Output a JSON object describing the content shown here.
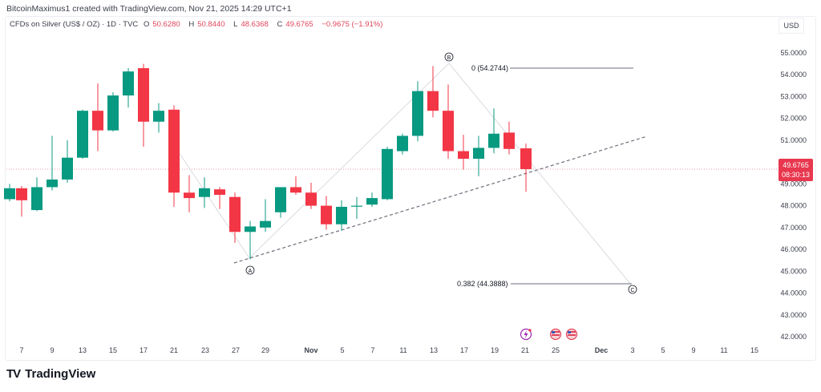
{
  "header": {
    "credit": "BitcoinMaximus1 created with TradingView.com, Nov 21, 2025 14:29 UTC+1"
  },
  "legend": {
    "symbol": "CFDs on Silver (US$ / OZ) · 1D · TVC",
    "open_label": "O",
    "open": "50.6280",
    "high_label": "H",
    "high": "50.8440",
    "low_label": "L",
    "low": "48.6368",
    "close_label": "C",
    "close": "49.6765",
    "change": "−0.9675 (−1.91%)"
  },
  "currency": "USD",
  "price_tag": {
    "price": "49.6765",
    "countdown": "08:30:13",
    "color": "#e8374e"
  },
  "brand": {
    "logo": "TV",
    "name": "TradingView"
  },
  "colors": {
    "up": "#089981",
    "down": "#f23645",
    "text": "#131722"
  },
  "annotations": {
    "wave_A": "A",
    "wave_B": "B",
    "wave_C": "C",
    "fib_0": "0 (54.2744)",
    "fib_382": "0.382 (44.3888)"
  },
  "chart_data": {
    "type": "candlestick",
    "title": "CFDs on Silver (US$ / OZ) · 1D · TVC",
    "xlabel": "",
    "ylabel": "USD",
    "ylim": [
      41.6,
      55.5
    ],
    "y_ticks": [
      "55.0000",
      "54.0000",
      "53.0000",
      "52.0000",
      "51.0000",
      "50.0000",
      "49.0000",
      "48.0000",
      "47.0000",
      "46.0000",
      "45.0000",
      "44.0000",
      "43.0000",
      "42.0000"
    ],
    "x_ticks": [
      "7",
      "9",
      "13",
      "15",
      "17",
      "21",
      "23",
      "27",
      "29",
      "Nov",
      "5",
      "7",
      "11",
      "13",
      "17",
      "19",
      "21",
      "25",
      "Dec",
      "3",
      "5",
      "9",
      "11",
      "15"
    ],
    "last_price": 49.6765,
    "candles": [
      {
        "o": 48.3,
        "h": 49.0,
        "l": 48.2,
        "c": 48.8
      },
      {
        "o": 48.8,
        "h": 48.9,
        "l": 47.5,
        "c": 48.25
      },
      {
        "o": 47.8,
        "h": 49.3,
        "l": 47.75,
        "c": 48.85
      },
      {
        "o": 48.85,
        "h": 51.2,
        "l": 48.7,
        "c": 49.2
      },
      {
        "o": 49.2,
        "h": 51.0,
        "l": 49.05,
        "c": 50.2
      },
      {
        "o": 50.2,
        "h": 52.4,
        "l": 50.15,
        "c": 52.35
      },
      {
        "o": 52.35,
        "h": 53.6,
        "l": 50.5,
        "c": 51.45
      },
      {
        "o": 51.45,
        "h": 53.2,
        "l": 51.4,
        "c": 53.05
      },
      {
        "o": 53.05,
        "h": 54.3,
        "l": 52.5,
        "c": 54.15
      },
      {
        "o": 54.3,
        "h": 54.5,
        "l": 50.7,
        "c": 51.85
      },
      {
        "o": 51.85,
        "h": 52.7,
        "l": 51.35,
        "c": 52.35
      },
      {
        "o": 52.4,
        "h": 52.6,
        "l": 47.95,
        "c": 48.6
      },
      {
        "o": 48.6,
        "h": 49.4,
        "l": 47.7,
        "c": 48.35
      },
      {
        "o": 48.4,
        "h": 49.3,
        "l": 47.9,
        "c": 48.8
      },
      {
        "o": 48.75,
        "h": 48.85,
        "l": 47.85,
        "c": 48.5
      },
      {
        "o": 48.4,
        "h": 48.6,
        "l": 46.3,
        "c": 46.8
      },
      {
        "o": 46.8,
        "h": 47.3,
        "l": 45.55,
        "c": 47.05
      },
      {
        "o": 47.0,
        "h": 48.3,
        "l": 46.8,
        "c": 47.3
      },
      {
        "o": 47.7,
        "h": 48.85,
        "l": 47.45,
        "c": 48.85
      },
      {
        "o": 48.85,
        "h": 49.35,
        "l": 48.5,
        "c": 48.6
      },
      {
        "o": 48.6,
        "h": 49.05,
        "l": 47.85,
        "c": 48.0
      },
      {
        "o": 48.0,
        "h": 48.45,
        "l": 46.9,
        "c": 47.15
      },
      {
        "o": 47.15,
        "h": 48.25,
        "l": 46.85,
        "c": 47.95
      },
      {
        "o": 48.0,
        "h": 48.4,
        "l": 47.4,
        "c": 48.0
      },
      {
        "o": 48.05,
        "h": 48.6,
        "l": 47.95,
        "c": 48.35
      },
      {
        "o": 48.3,
        "h": 50.7,
        "l": 48.25,
        "c": 50.6
      },
      {
        "o": 50.5,
        "h": 51.3,
        "l": 50.35,
        "c": 51.2
      },
      {
        "o": 51.2,
        "h": 53.7,
        "l": 50.95,
        "c": 53.25
      },
      {
        "o": 53.25,
        "h": 54.4,
        "l": 52.05,
        "c": 52.35
      },
      {
        "o": 52.35,
        "h": 53.55,
        "l": 50.15,
        "c": 50.5
      },
      {
        "o": 50.5,
        "h": 51.25,
        "l": 49.65,
        "c": 50.15
      },
      {
        "o": 50.15,
        "h": 51.2,
        "l": 49.35,
        "c": 50.65
      },
      {
        "o": 50.65,
        "h": 52.45,
        "l": 50.4,
        "c": 51.3
      },
      {
        "o": 51.35,
        "h": 51.85,
        "l": 50.35,
        "c": 50.6
      },
      {
        "o": 50.628,
        "h": 50.844,
        "l": 48.6368,
        "c": 49.6765
      }
    ]
  }
}
